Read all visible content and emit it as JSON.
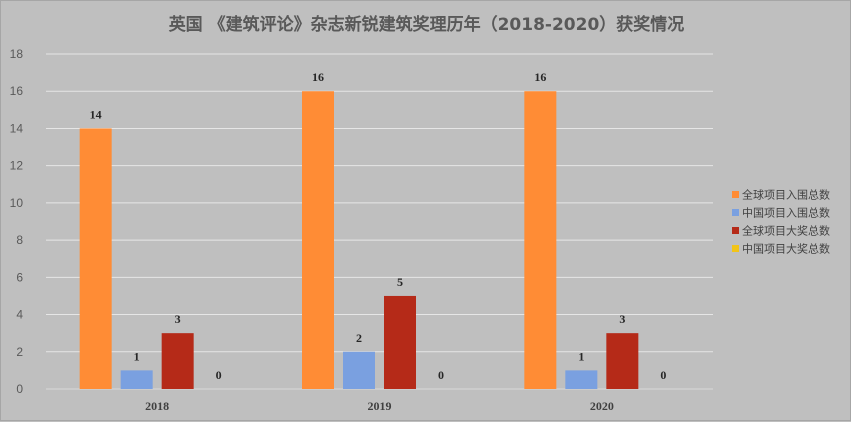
{
  "chart_data": {
    "type": "bar",
    "title": "英国 《建筑评论》杂志新锐建筑奖理历年（2018-2020）获奖情况",
    "categories": [
      "2018",
      "2019",
      "2020"
    ],
    "series": [
      {
        "name": "全球项目入围总数",
        "values": [
          14,
          16,
          16
        ],
        "color": "#ff8c35"
      },
      {
        "name": "中国项目入围总数",
        "values": [
          1,
          2,
          1
        ],
        "color": "#7aa0e0"
      },
      {
        "name": "全球项目大奖总数",
        "values": [
          3,
          5,
          3
        ],
        "color": "#b52a18"
      },
      {
        "name": "中国项目大奖总数",
        "values": [
          0,
          0,
          0
        ],
        "color": "#f2c418"
      }
    ],
    "ylim": [
      0,
      18
    ],
    "yticks": [
      0,
      2,
      4,
      6,
      8,
      10,
      12,
      14,
      16,
      18
    ],
    "grid": true,
    "legend_position": "right",
    "data_labels": true
  }
}
